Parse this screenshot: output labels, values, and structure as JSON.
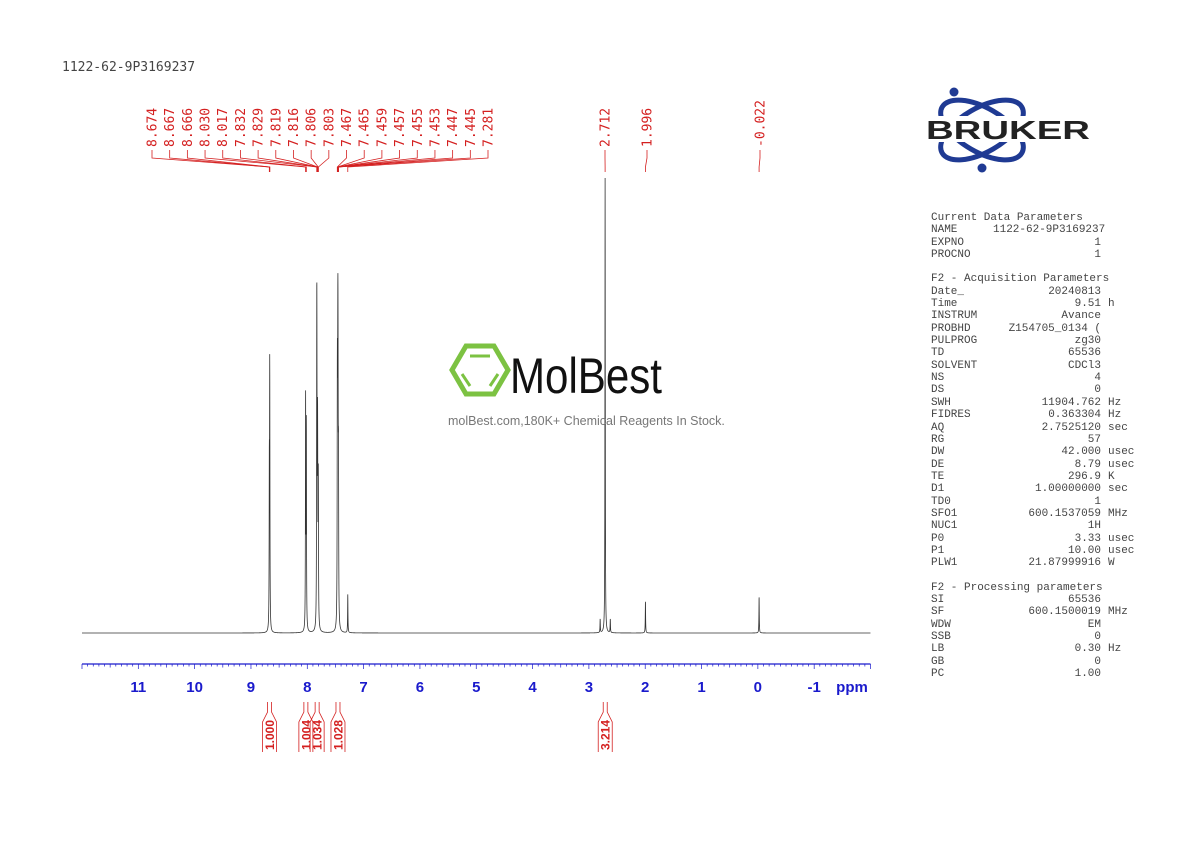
{
  "title": "1122-62-9P3169237",
  "watermark": {
    "brand": "MolBest",
    "tagline": "molBest.com,180K+ Chemical Reagents In Stock."
  },
  "logo": {
    "text": "BRUKER",
    "color": "#1f3a93"
  },
  "parameters": [
    {
      "header": "Current Data Parameters",
      "rows": [
        {
          "k": "NAME",
          "v": "1122-62-9P3169237",
          "u": ""
        },
        {
          "k": "EXPNO",
          "v": "1",
          "u": ""
        },
        {
          "k": "PROCNO",
          "v": "1",
          "u": ""
        }
      ]
    },
    {
      "header": "F2 - Acquisition Parameters",
      "rows": [
        {
          "k": "Date_",
          "v": "20240813",
          "u": ""
        },
        {
          "k": "Time",
          "v": "9.51",
          "u": "h"
        },
        {
          "k": "INSTRUM",
          "v": "Avance",
          "u": ""
        },
        {
          "k": "PROBHD",
          "v": "Z154705_0134 (",
          "u": ""
        },
        {
          "k": "PULPROG",
          "v": "zg30",
          "u": ""
        },
        {
          "k": "TD",
          "v": "65536",
          "u": ""
        },
        {
          "k": "SOLVENT",
          "v": "CDCl3",
          "u": ""
        },
        {
          "k": "NS",
          "v": "4",
          "u": ""
        },
        {
          "k": "DS",
          "v": "0",
          "u": ""
        },
        {
          "k": "SWH",
          "v": "11904.762",
          "u": "Hz"
        },
        {
          "k": "FIDRES",
          "v": "0.363304",
          "u": "Hz"
        },
        {
          "k": "AQ",
          "v": "2.7525120",
          "u": "sec"
        },
        {
          "k": "RG",
          "v": "57",
          "u": ""
        },
        {
          "k": "DW",
          "v": "42.000",
          "u": "usec"
        },
        {
          "k": "DE",
          "v": "8.79",
          "u": "usec"
        },
        {
          "k": "TE",
          "v": "296.9",
          "u": "K"
        },
        {
          "k": "D1",
          "v": "1.00000000",
          "u": "sec"
        },
        {
          "k": "TD0",
          "v": "1",
          "u": ""
        },
        {
          "k": "SFO1",
          "v": "600.1537059",
          "u": "MHz"
        },
        {
          "k": "NUC1",
          "v": "1H",
          "u": ""
        },
        {
          "k": "P0",
          "v": "3.33",
          "u": "usec"
        },
        {
          "k": "P1",
          "v": "10.00",
          "u": "usec"
        },
        {
          "k": "PLW1",
          "v": "21.87999916",
          "u": "W"
        }
      ]
    },
    {
      "header": "F2 - Processing parameters",
      "rows": [
        {
          "k": "SI",
          "v": "65536",
          "u": ""
        },
        {
          "k": "SF",
          "v": "600.1500019",
          "u": "MHz"
        },
        {
          "k": "WDW",
          "v": "EM",
          "u": ""
        },
        {
          "k": "SSB",
          "v": "0",
          "u": ""
        },
        {
          "k": "LB",
          "v": "0.30",
          "u": "Hz"
        },
        {
          "k": "GB",
          "v": "0",
          "u": ""
        },
        {
          "k": "PC",
          "v": "1.00",
          "u": ""
        }
      ]
    }
  ],
  "chart_data": {
    "type": "line",
    "xlabel": "ppm",
    "xlim": [
      12,
      -2
    ],
    "x_ticks": [
      "11",
      "10",
      "9",
      "8",
      "7",
      "6",
      "5",
      "4",
      "3",
      "2",
      "1",
      "0",
      "-1"
    ],
    "grid": false,
    "colors": {
      "spectrum": "#333333",
      "axis": "#1a1acc",
      "annotation": "#d42020"
    },
    "peak_labels": [
      "8.674",
      "8.667",
      "8.666",
      "8.030",
      "8.017",
      "7.832",
      "7.829",
      "7.819",
      "7.816",
      "7.806",
      "7.803",
      "7.467",
      "7.465",
      "7.459",
      "7.457",
      "7.455",
      "7.453",
      "7.447",
      "7.445",
      "7.281",
      "2.712",
      "1.996",
      "-0.022"
    ],
    "peaks": [
      {
        "ppm": 8.674,
        "intensity": 0.32
      },
      {
        "ppm": 8.667,
        "intensity": 0.29
      },
      {
        "ppm": 8.666,
        "intensity": 0.28
      },
      {
        "ppm": 8.03,
        "intensity": 0.51
      },
      {
        "ppm": 8.017,
        "intensity": 0.45
      },
      {
        "ppm": 7.832,
        "intensity": 0.47
      },
      {
        "ppm": 7.829,
        "intensity": 0.4
      },
      {
        "ppm": 7.819,
        "intensity": 0.26
      },
      {
        "ppm": 7.816,
        "intensity": 0.25
      },
      {
        "ppm": 7.806,
        "intensity": 0.2
      },
      {
        "ppm": 7.803,
        "intensity": 0.18
      },
      {
        "ppm": 7.467,
        "intensity": 0.29
      },
      {
        "ppm": 7.465,
        "intensity": 0.27
      },
      {
        "ppm": 7.459,
        "intensity": 0.25
      },
      {
        "ppm": 7.457,
        "intensity": 0.24
      },
      {
        "ppm": 7.455,
        "intensity": 0.22
      },
      {
        "ppm": 7.453,
        "intensity": 0.2
      },
      {
        "ppm": 7.447,
        "intensity": 0.18
      },
      {
        "ppm": 7.445,
        "intensity": 0.17
      },
      {
        "ppm": 7.281,
        "intensity": 0.084
      },
      {
        "ppm": 2.8,
        "intensity": 0.03
      },
      {
        "ppm": 2.712,
        "intensity": 1.0
      },
      {
        "ppm": 2.62,
        "intensity": 0.03
      },
      {
        "ppm": 1.996,
        "intensity": 0.07
      },
      {
        "ppm": -0.022,
        "intensity": 0.08
      }
    ],
    "integrals": [
      {
        "from": 8.72,
        "to": 8.62,
        "value": "1.000"
      },
      {
        "from": 8.07,
        "to": 7.98,
        "value": "1.004"
      },
      {
        "from": 7.87,
        "to": 7.78,
        "value": "1.034"
      },
      {
        "from": 7.5,
        "to": 7.41,
        "value": "1.028"
      },
      {
        "from": 2.76,
        "to": 2.66,
        "value": "3.214"
      }
    ]
  }
}
